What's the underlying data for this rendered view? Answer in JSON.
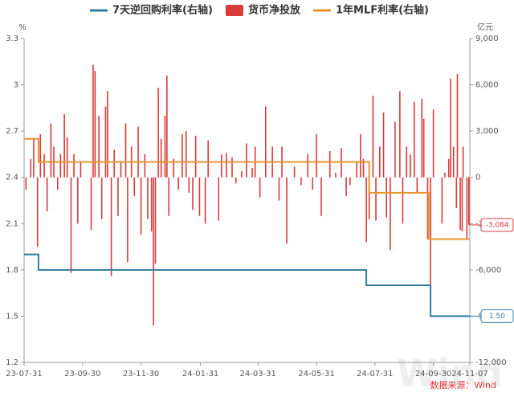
{
  "chart_data": {
    "type": "bar-line",
    "y_unit": "%",
    "y2_unit": "亿元",
    "source": "数据来源：Wind",
    "ylim": [
      1.2,
      3.3
    ],
    "yticks": [
      1.2,
      1.5,
      1.8,
      2.1,
      2.4,
      2.7,
      3,
      3.3
    ],
    "y2lim": [
      -12000,
      9000
    ],
    "y2ticks": [
      {
        "value": -12000,
        "label": "-12,000"
      },
      {
        "value": -9000,
        "label": "-9,000"
      },
      {
        "value": -6000,
        "label": "-6,000"
      },
      {
        "value": -3000,
        "label": "-3,000"
      },
      0,
      {
        "value": 3000,
        "label": "3,000"
      },
      {
        "value": 6000,
        "label": "6,000"
      },
      {
        "value": 9000,
        "label": "9,000"
      }
    ],
    "xlim": [
      "23-07-31",
      "24-11-07"
    ],
    "xticks": [
      "23-07-31",
      "23-09-30",
      "23-11-30",
      "24-01-31",
      "24-03-31",
      "24-05-31",
      "24-07-31",
      "24-09-30",
      "24-11-07"
    ],
    "grid": false,
    "series": [
      {
        "name": "7天逆回购利率(右轴)",
        "type": "step",
        "axis": "y",
        "color": "#2e7ca0",
        "x": [
          "23-07-31",
          "23-08-15",
          "24-07-22",
          "24-09-27",
          "24-11-07"
        ],
        "values": [
          1.9,
          1.8,
          1.7,
          1.5,
          1.5
        ],
        "value_labels": [
          null,
          null,
          null,
          null,
          "1.50"
        ]
      },
      {
        "name": "货币净投放",
        "type": "bar",
        "axis": "y2",
        "color": "#d93a3a",
        "x": [
          "23-08-02",
          "23-08-07",
          "23-08-10",
          "23-08-14",
          "23-08-17",
          "23-08-21",
          "23-08-24",
          "23-08-28",
          "23-08-31",
          "23-09-04",
          "23-09-07",
          "23-09-11",
          "23-09-14",
          "23-09-18",
          "23-09-21",
          "23-09-25",
          "23-09-28",
          "23-10-09",
          "23-10-11",
          "23-10-13",
          "23-10-17",
          "23-10-20",
          "23-10-24",
          "23-10-26",
          "23-10-30",
          "23-11-02",
          "23-11-06",
          "23-11-09",
          "23-11-14",
          "23-11-16",
          "23-11-20",
          "23-11-23",
          "23-11-27",
          "23-11-30",
          "23-12-04",
          "23-12-07",
          "23-12-11",
          "23-12-13",
          "23-12-15",
          "23-12-18",
          "23-12-21",
          "23-12-25",
          "23-12-27",
          "23-12-29",
          "24-01-03",
          "24-01-08",
          "24-01-12",
          "24-01-16",
          "24-01-19",
          "24-01-23",
          "24-01-26",
          "24-01-30",
          "24-02-05",
          "24-02-08",
          "24-02-19",
          "24-02-22",
          "24-02-27",
          "24-03-04",
          "24-03-08",
          "24-03-14",
          "24-03-19",
          "24-03-25",
          "24-03-28",
          "24-04-02",
          "24-04-08",
          "24-04-15",
          "24-04-22",
          "24-04-25",
          "24-04-30",
          "24-05-08",
          "24-05-15",
          "24-05-22",
          "24-05-27",
          "24-05-31",
          "24-06-05",
          "24-06-14",
          "24-06-20",
          "24-06-26",
          "24-07-01",
          "24-07-05",
          "24-07-12",
          "24-07-16",
          "24-07-19",
          "24-07-22",
          "24-07-25",
          "24-07-29",
          "24-08-01",
          "24-08-05",
          "24-08-09",
          "24-08-12",
          "24-08-16",
          "24-08-21",
          "24-08-26",
          "24-08-29",
          "24-09-02",
          "24-09-06",
          "24-09-10",
          "24-09-13",
          "24-09-18",
          "24-09-20",
          "24-09-24",
          "24-09-27",
          "24-09-30",
          "24-10-09",
          "24-10-12",
          "24-10-16",
          "24-10-18",
          "24-10-21",
          "24-10-24",
          "24-10-25",
          "24-10-28",
          "24-10-30",
          "24-10-31",
          "24-11-04",
          "24-11-06"
        ],
        "values": [
          -800,
          1200,
          2500,
          -4500,
          2800,
          1500,
          -2200,
          3500,
          2000,
          -800,
          1500,
          4100,
          2600,
          -6200,
          1500,
          -3000,
          1000,
          -3400,
          7300,
          6900,
          4000,
          -2700,
          4600,
          5600,
          -6400,
          1800,
          -2500,
          1000,
          3500,
          -5500,
          2000,
          -1200,
          3300,
          -3700,
          1500,
          -2700,
          -3500,
          -9600,
          -5600,
          5800,
          2500,
          4000,
          6600,
          -2500,
          1200,
          -800,
          2800,
          3000,
          -1000,
          -2100,
          2700,
          -2500,
          -3000,
          2400,
          -2800,
          1500,
          1600,
          1300,
          -400,
          400,
          2200,
          600,
          2000,
          -1300,
          4600,
          2000,
          -1500,
          2000,
          -4300,
          700,
          -500,
          1500,
          -800,
          2800,
          -2500,
          1700,
          300,
          1900,
          -1200,
          -500,
          1000,
          2800,
          1200,
          -4200,
          -2700,
          5300,
          -2800,
          2000,
          4200,
          -2600,
          -4700,
          3600,
          5600,
          -3000,
          2000,
          1500,
          4900,
          -1000,
          5100,
          3800,
          -4000,
          -8800,
          4400,
          -3000,
          300,
          1200,
          6400,
          2000,
          -2000,
          6700,
          -3400,
          -3500,
          2000,
          -4000,
          -3084
        ],
        "value_labels": [
          null,
          null,
          null,
          null,
          null,
          null,
          null,
          null,
          null,
          null,
          null,
          null,
          null,
          null,
          null,
          null,
          null,
          null,
          null,
          null,
          null,
          null,
          null,
          null,
          null,
          null,
          null,
          null,
          null,
          null,
          null,
          null,
          null,
          null,
          null,
          null,
          null,
          null,
          null,
          null,
          null,
          null,
          null,
          null,
          null,
          null,
          null,
          null,
          null,
          null,
          null,
          null,
          null,
          null,
          null,
          null,
          null,
          null,
          null,
          null,
          null,
          null,
          null,
          null,
          null,
          null,
          null,
          null,
          null,
          null,
          null,
          null,
          null,
          null,
          null,
          null,
          null,
          null,
          null,
          null,
          null,
          null,
          null,
          null,
          null,
          null,
          null,
          null,
          null,
          null,
          null,
          null,
          null,
          null,
          null,
          null,
          null,
          null,
          null,
          null,
          null,
          null,
          null,
          null,
          null,
          null,
          null,
          null,
          null,
          null,
          null,
          null,
          null,
          null,
          "-3,084"
        ]
      },
      {
        "name": "1年MLF利率(右轴)",
        "type": "step",
        "axis": "y",
        "color": "#e8942e",
        "x": [
          "23-07-31",
          "23-08-15",
          "24-07-25",
          "24-09-25",
          "24-11-07"
        ],
        "values": [
          2.65,
          2.5,
          2.3,
          2.0,
          2.0
        ]
      }
    ]
  }
}
